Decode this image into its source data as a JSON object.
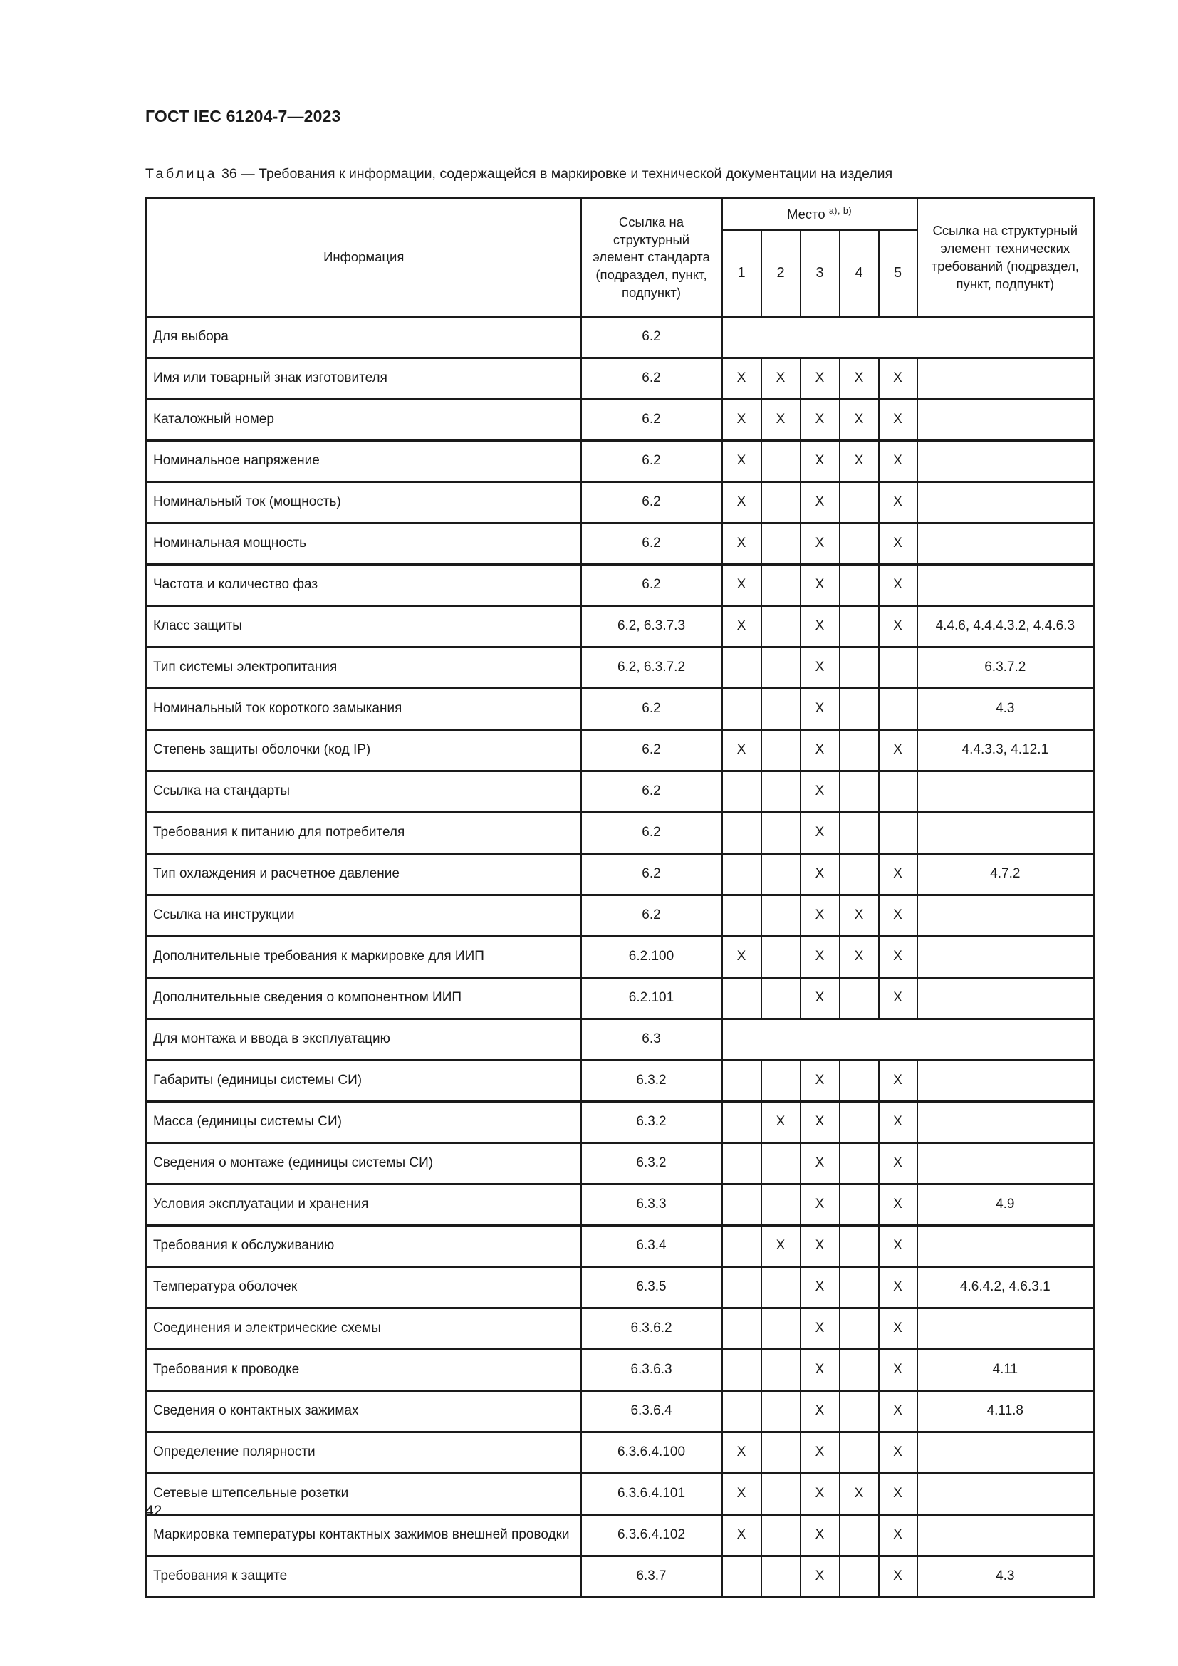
{
  "page": {
    "doc_header": "ГОСТ IEC 61204-7—2023",
    "page_number": "42"
  },
  "caption": {
    "word": "Таблица",
    "number": "36",
    "separator": "—",
    "text": "Требования к информации, содержащейся в маркировке и технической документации на изделия"
  },
  "table": {
    "headers": {
      "info": "Информация",
      "std_ref": "Ссылка на структурный элемент стандарта (подраздел, пункт, подпункт)",
      "place": "Место",
      "place_footnote": "a), b)",
      "place_cols": [
        "1",
        "2",
        "3",
        "4",
        "5"
      ],
      "tech_ref": "Ссылка на структурный элемент технических требований (подраздел, пункт, подпункт)"
    },
    "rows": [
      {
        "info": "Для выбора",
        "std": "6.2",
        "merged": true
      },
      {
        "info": "Имя или товарный знак изготовителя",
        "std": "6.2",
        "places": [
          "X",
          "X",
          "X",
          "X",
          "X"
        ],
        "tech": ""
      },
      {
        "info": "Каталожный номер",
        "std": "6.2",
        "places": [
          "X",
          "X",
          "X",
          "X",
          "X"
        ],
        "tech": ""
      },
      {
        "info": "Номинальное напряжение",
        "std": "6.2",
        "places": [
          "X",
          "",
          "X",
          "X",
          "X"
        ],
        "tech": ""
      },
      {
        "info": "Номинальный ток (мощность)",
        "std": "6.2",
        "places": [
          "X",
          "",
          "X",
          "",
          "X"
        ],
        "tech": ""
      },
      {
        "info": "Номинальная мощность",
        "std": "6.2",
        "places": [
          "X",
          "",
          "X",
          "",
          "X"
        ],
        "tech": ""
      },
      {
        "info": "Частота и количество фаз",
        "std": "6.2",
        "places": [
          "X",
          "",
          "X",
          "",
          "X"
        ],
        "tech": ""
      },
      {
        "info": "Класс защиты",
        "std": "6.2, 6.3.7.3",
        "places": [
          "X",
          "",
          "X",
          "",
          "X"
        ],
        "tech": "4.4.6, 4.4.4.3.2, 4.4.6.3"
      },
      {
        "info": "Тип системы электропитания",
        "std": "6.2, 6.3.7.2",
        "places": [
          "",
          "",
          "X",
          "",
          ""
        ],
        "tech": "6.3.7.2"
      },
      {
        "info": "Номинальный ток короткого замыкания",
        "std": "6.2",
        "places": [
          "",
          "",
          "X",
          "",
          ""
        ],
        "tech": "4.3"
      },
      {
        "info": "Степень защиты оболочки (код IP)",
        "std": "6.2",
        "places": [
          "X",
          "",
          "X",
          "",
          "X"
        ],
        "tech": "4.4.3.3, 4.12.1"
      },
      {
        "info": "Ссылка на стандарты",
        "std": "6.2",
        "places": [
          "",
          "",
          "X",
          "",
          ""
        ],
        "tech": ""
      },
      {
        "info": "Требования к питанию для потребителя",
        "std": "6.2",
        "places": [
          "",
          "",
          "X",
          "",
          ""
        ],
        "tech": ""
      },
      {
        "info": "Тип охлаждения и расчетное давление",
        "std": "6.2",
        "places": [
          "",
          "",
          "X",
          "",
          "X"
        ],
        "tech": "4.7.2"
      },
      {
        "info": "Ссылка на инструкции",
        "std": "6.2",
        "places": [
          "",
          "",
          "X",
          "X",
          "X"
        ],
        "tech": ""
      },
      {
        "info": "Дополнительные требования к маркировке для ИИП",
        "std": "6.2.100",
        "places": [
          "X",
          "",
          "X",
          "X",
          "X"
        ],
        "tech": ""
      },
      {
        "info": "Дополнительные сведения о компонентном ИИП",
        "std": "6.2.101",
        "places": [
          "",
          "",
          "X",
          "",
          "X"
        ],
        "tech": ""
      },
      {
        "info": "Для монтажа и ввода в эксплуатацию",
        "std": "6.3",
        "merged": true
      },
      {
        "info": "Габариты (единицы системы СИ)",
        "std": "6.3.2",
        "places": [
          "",
          "",
          "X",
          "",
          "X"
        ],
        "tech": ""
      },
      {
        "info": "Масса (единицы системы СИ)",
        "std": "6.3.2",
        "places": [
          "",
          "X",
          "X",
          "",
          "X"
        ],
        "tech": ""
      },
      {
        "info": "Сведения о монтаже (единицы системы СИ)",
        "std": "6.3.2",
        "places": [
          "",
          "",
          "X",
          "",
          "X"
        ],
        "tech": ""
      },
      {
        "info": "Условия эксплуатации и хранения",
        "std": "6.3.3",
        "places": [
          "",
          "",
          "X",
          "",
          "X"
        ],
        "tech": "4.9"
      },
      {
        "info": "Требования к обслуживанию",
        "std": "6.3.4",
        "places": [
          "",
          "X",
          "X",
          "",
          "X"
        ],
        "tech": ""
      },
      {
        "info": "Температура оболочек",
        "std": "6.3.5",
        "places": [
          "",
          "",
          "X",
          "",
          "X"
        ],
        "tech": "4.6.4.2, 4.6.3.1"
      },
      {
        "info": "Соединения и электрические схемы",
        "std": "6.3.6.2",
        "places": [
          "",
          "",
          "X",
          "",
          "X"
        ],
        "tech": ""
      },
      {
        "info": "Требования к проводке",
        "std": "6.3.6.3",
        "places": [
          "",
          "",
          "X",
          "",
          "X"
        ],
        "tech": "4.11"
      },
      {
        "info": "Сведения о контактных зажимах",
        "std": "6.3.6.4",
        "places": [
          "",
          "",
          "X",
          "",
          "X"
        ],
        "tech": "4.11.8"
      },
      {
        "info": "Определение полярности",
        "std": "6.3.6.4.100",
        "places": [
          "X",
          "",
          "X",
          "",
          "X"
        ],
        "tech": ""
      },
      {
        "info": "Сетевые штепсельные розетки",
        "std": "6.3.6.4.101",
        "places": [
          "X",
          "",
          "X",
          "X",
          "X"
        ],
        "tech": ""
      },
      {
        "info": "Маркировка температуры контактных зажимов внешней проводки",
        "std": "6.3.6.4.102",
        "places": [
          "X",
          "",
          "X",
          "",
          "X"
        ],
        "tech": ""
      },
      {
        "info": "Требования к защите",
        "std": "6.3.7",
        "places": [
          "",
          "",
          "X",
          "",
          "X"
        ],
        "tech": "4.3"
      }
    ]
  }
}
